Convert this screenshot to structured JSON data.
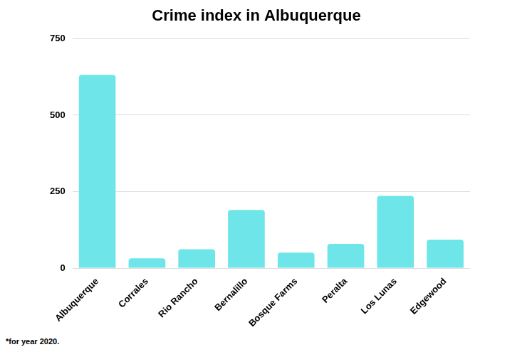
{
  "chart_data": {
    "type": "bar",
    "title": "Crime index in Albuquerque",
    "annotations": [
      "*for year 2020."
    ],
    "categories": [
      "Albuquerque",
      "Corrales",
      "Rio Rancho",
      "Bernalillo",
      "Bosque Farms",
      "Peralta",
      "Los Lunas",
      "Edgewood"
    ],
    "values": [
      632,
      32,
      62,
      190,
      51,
      79,
      236,
      93
    ],
    "color": "#6ee6e9",
    "ylim": [
      0,
      750
    ],
    "yticks": [
      0,
      250,
      500,
      750
    ],
    "grid": true
  }
}
